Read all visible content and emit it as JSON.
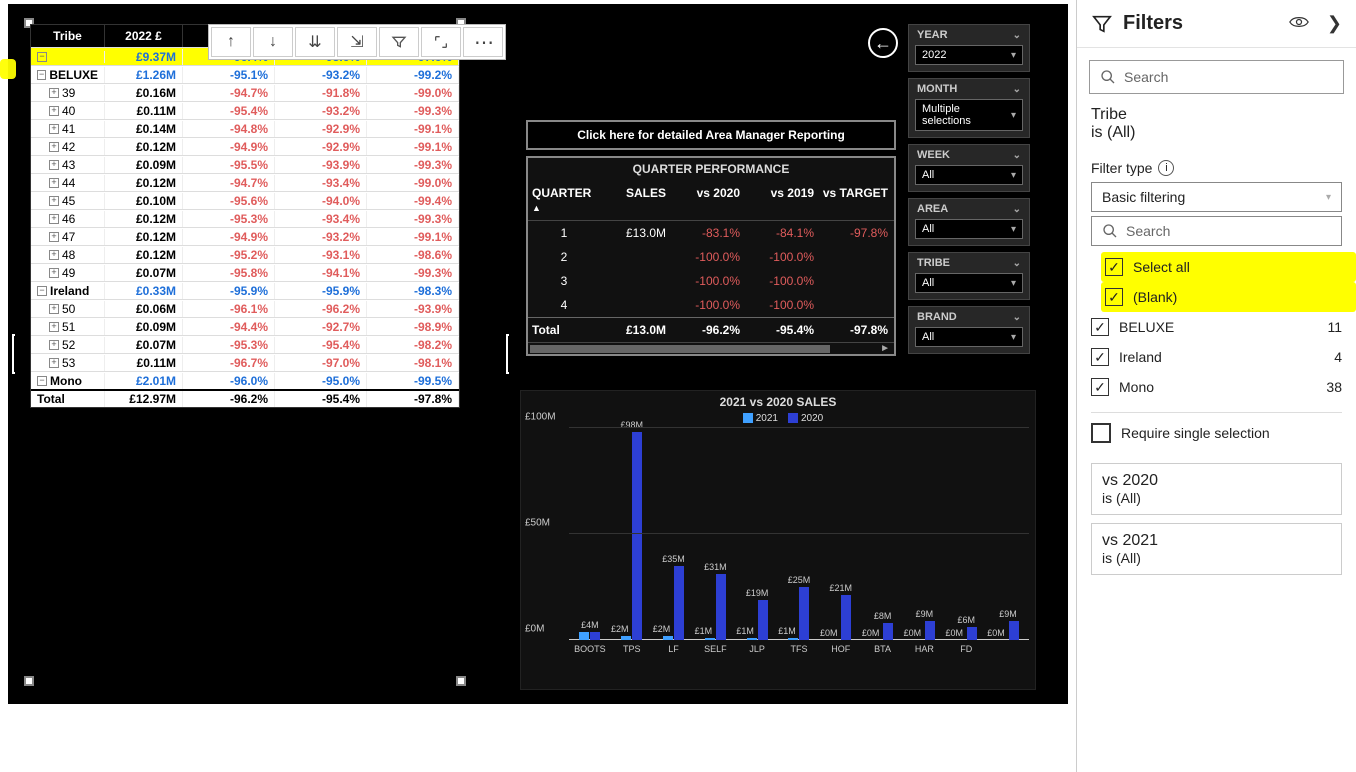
{
  "colors": {
    "accent_blue": "#1e6fd9",
    "neg_red": "#e05c5c",
    "highlight": "#ffff00",
    "bar2021": "#3fa0ff",
    "bar2020": "#2d3fd4",
    "canvas_bg": "#000000",
    "panel_bg": "#111111"
  },
  "matrix": {
    "headers": {
      "tribe": "Tribe",
      "sales": "2022 £"
    },
    "total_label": "Total",
    "total": {
      "sales": "£12.97M",
      "v1": "-96.2%",
      "v2": "-95.4%",
      "v3": "-97.8%"
    },
    "rows": [
      {
        "type": "group",
        "label": "",
        "sales": "£9.37M",
        "v1": "-96.4%",
        "v2": "-95.6%",
        "v3": "-97.6%",
        "hl": true,
        "link": true
      },
      {
        "type": "group",
        "label": "BELUXE",
        "sales": "£1.26M",
        "v1": "-95.1%",
        "v2": "-93.2%",
        "v3": "-99.2%",
        "link": true
      },
      {
        "type": "child",
        "label": "39",
        "sales": "£0.16M",
        "v1": "-94.7%",
        "v2": "-91.8%",
        "v3": "-99.0%"
      },
      {
        "type": "child",
        "label": "40",
        "sales": "£0.11M",
        "v1": "-95.4%",
        "v2": "-93.2%",
        "v3": "-99.3%"
      },
      {
        "type": "child",
        "label": "41",
        "sales": "£0.14M",
        "v1": "-94.8%",
        "v2": "-92.9%",
        "v3": "-99.1%"
      },
      {
        "type": "child",
        "label": "42",
        "sales": "£0.12M",
        "v1": "-94.9%",
        "v2": "-92.9%",
        "v3": "-99.1%"
      },
      {
        "type": "child",
        "label": "43",
        "sales": "£0.09M",
        "v1": "-95.5%",
        "v2": "-93.9%",
        "v3": "-99.3%"
      },
      {
        "type": "child",
        "label": "44",
        "sales": "£0.12M",
        "v1": "-94.7%",
        "v2": "-93.4%",
        "v3": "-99.0%"
      },
      {
        "type": "child",
        "label": "45",
        "sales": "£0.10M",
        "v1": "-95.6%",
        "v2": "-94.0%",
        "v3": "-99.4%"
      },
      {
        "type": "child",
        "label": "46",
        "sales": "£0.12M",
        "v1": "-95.3%",
        "v2": "-93.4%",
        "v3": "-99.3%"
      },
      {
        "type": "child",
        "label": "47",
        "sales": "£0.12M",
        "v1": "-94.9%",
        "v2": "-93.2%",
        "v3": "-99.1%"
      },
      {
        "type": "child",
        "label": "48",
        "sales": "£0.12M",
        "v1": "-95.2%",
        "v2": "-93.1%",
        "v3": "-98.6%"
      },
      {
        "type": "child",
        "label": "49",
        "sales": "£0.07M",
        "v1": "-95.8%",
        "v2": "-94.1%",
        "v3": "-99.3%"
      },
      {
        "type": "group",
        "label": "Ireland",
        "sales": "£0.33M",
        "v1": "-95.9%",
        "v2": "-95.9%",
        "v3": "-98.3%",
        "link": true
      },
      {
        "type": "child",
        "label": "50",
        "sales": "£0.06M",
        "v1": "-96.1%",
        "v2": "-96.2%",
        "v3": "-93.9%"
      },
      {
        "type": "child",
        "label": "51",
        "sales": "£0.09M",
        "v1": "-94.4%",
        "v2": "-92.7%",
        "v3": "-98.9%"
      },
      {
        "type": "child",
        "label": "52",
        "sales": "£0.07M",
        "v1": "-95.3%",
        "v2": "-95.4%",
        "v3": "-98.2%"
      },
      {
        "type": "child",
        "label": "53",
        "sales": "£0.11M",
        "v1": "-96.7%",
        "v2": "-97.0%",
        "v3": "-98.1%"
      },
      {
        "type": "group",
        "label": "Mono",
        "sales": "£2.01M",
        "v1": "-96.0%",
        "v2": "-95.0%",
        "v3": "-99.5%",
        "link": true
      }
    ]
  },
  "detail_button": "Click here for detailed Area Manager Reporting",
  "qperf": {
    "title": "QUARTER PERFORMANCE",
    "headers": {
      "q": "QUARTER",
      "s": "SALES",
      "a": "vs 2020",
      "b": "vs 2019",
      "c": "vs TARGET"
    },
    "rows": [
      {
        "q": "1",
        "s": "£13.0M",
        "a": "-83.1%",
        "b": "-84.1%",
        "c": "-97.8%"
      },
      {
        "q": "2",
        "s": "",
        "a": "-100.0%",
        "b": "-100.0%",
        "c": ""
      },
      {
        "q": "3",
        "s": "",
        "a": "-100.0%",
        "b": "-100.0%",
        "c": ""
      },
      {
        "q": "4",
        "s": "",
        "a": "-100.0%",
        "b": "-100.0%",
        "c": ""
      }
    ],
    "total": {
      "q": "Total",
      "s": "£13.0M",
      "a": "-96.2%",
      "b": "-95.4%",
      "c": "-97.8%"
    }
  },
  "slicers": [
    {
      "title": "YEAR",
      "value": "2022"
    },
    {
      "title": "MONTH",
      "value": "Multiple selections"
    },
    {
      "title": "WEEK",
      "value": "All"
    },
    {
      "title": "AREA",
      "value": "All"
    },
    {
      "title": "TRIBE",
      "value": "All"
    },
    {
      "title": "BRAND",
      "value": "All"
    }
  ],
  "chart": {
    "title": "2021 vs 2020 SALES",
    "legend": [
      {
        "label": "2021",
        "color": "#3fa0ff"
      },
      {
        "label": "2020",
        "color": "#2d3fd4"
      }
    ],
    "ylabels": [
      {
        "label": "£100M",
        "frac": 1.0
      },
      {
        "label": "£50M",
        "frac": 0.5
      },
      {
        "label": "£0M",
        "frac": 0.0
      }
    ],
    "ymax": 100,
    "groups": [
      {
        "cat": "BOOTS",
        "v21": 4,
        "v20": 4,
        "lbl": "£4M"
      },
      {
        "cat": "TPS",
        "v21": 2,
        "v20": 98,
        "lbl": "£98M",
        "lbl2": "£2M"
      },
      {
        "cat": "LF",
        "v21": 2,
        "v20": 35,
        "lbl": "£35M",
        "lbl2": "£2M"
      },
      {
        "cat": "SELF",
        "v21": 1,
        "v20": 31,
        "lbl": "£31M",
        "lbl2": "£1M"
      },
      {
        "cat": "JLP",
        "v21": 1,
        "v20": 19,
        "lbl": "£19M",
        "lbl2": "£1M"
      },
      {
        "cat": "TFS",
        "v21": 1,
        "v20": 25,
        "lbl": "£25M",
        "lbl2": "£1M"
      },
      {
        "cat": "HOF",
        "v21": 0,
        "v20": 21,
        "lbl": "£21M",
        "lbl2": "£0M"
      },
      {
        "cat": "BTA",
        "v21": 0,
        "v20": 8,
        "lbl": "£8M",
        "lbl2": "£0M"
      },
      {
        "cat": "HAR",
        "v21": 0,
        "v20": 9,
        "lbl": "£9M",
        "lbl2": "£0M"
      },
      {
        "cat": "FD",
        "v21": 0,
        "v20": 6,
        "lbl": "£6M",
        "lbl2": "£0M"
      },
      {
        "cat": "",
        "v21": 0,
        "v20": 9,
        "lbl": "£9M",
        "lbl2": "£0M"
      }
    ]
  },
  "filters": {
    "title": "Filters",
    "search_placeholder": "Search",
    "field_label": "Tribe",
    "field_state": "is (All)",
    "filter_type_label": "Filter type",
    "filter_type_value": "Basic filtering",
    "inner_search_placeholder": "Search",
    "options": [
      {
        "label": "Select all",
        "checked": true,
        "hl": true
      },
      {
        "label": "(Blank)",
        "checked": true,
        "hl": true
      },
      {
        "label": "BELUXE",
        "checked": true,
        "count": "11"
      },
      {
        "label": "Ireland",
        "checked": true,
        "count": "4"
      },
      {
        "label": "Mono",
        "checked": true,
        "count": "38"
      }
    ],
    "require_single": "Require single selection",
    "cards": [
      {
        "t": "vs 2020",
        "s": "is (All)"
      },
      {
        "t": "vs 2021",
        "s": "is (All)"
      }
    ]
  }
}
